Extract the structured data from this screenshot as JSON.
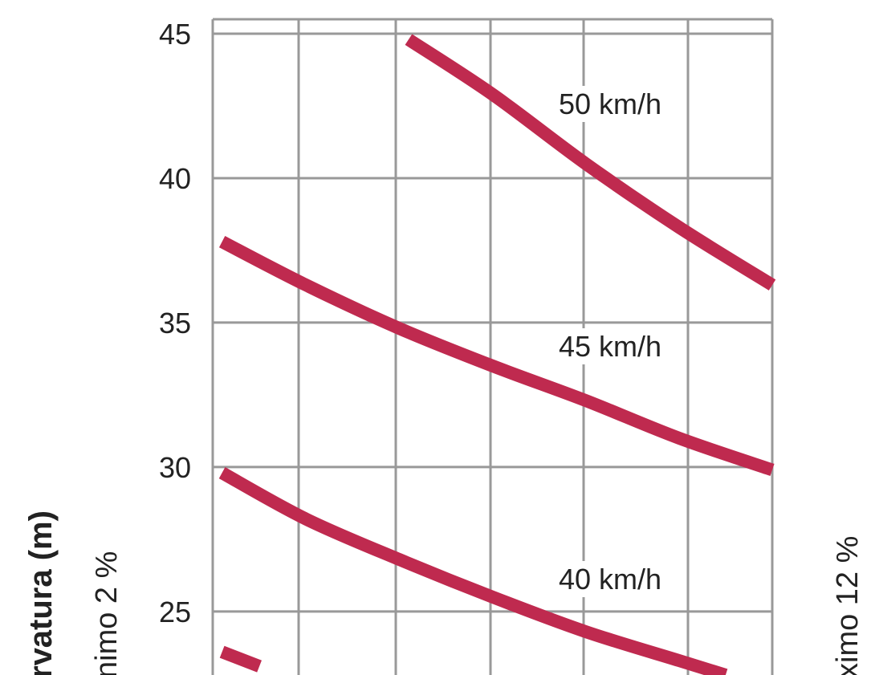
{
  "chart_data": {
    "type": "line",
    "title": "",
    "ylabel": "rvatura (m)",
    "left_side_label": "nimo 2 %",
    "right_side_label": "ximo 12 %",
    "ylim": [
      22.8,
      45.5
    ],
    "xlim": [
      0,
      6
    ],
    "y_ticks": [
      "45",
      "40",
      "35",
      "30",
      "25"
    ],
    "grid": true,
    "colors": {
      "curve": "#bf2a4f",
      "grid": "#999999",
      "text": "#222222"
    },
    "series": [
      {
        "name": "50 km/h",
        "x": [
          2.1,
          3.0,
          4.0,
          5.0,
          6.0
        ],
        "y": [
          44.8,
          42.9,
          40.5,
          38.3,
          36.3
        ]
      },
      {
        "name": "45 km/h",
        "x": [
          0.1,
          1.0,
          2.0,
          3.0,
          4.0,
          5.0,
          6.0
        ],
        "y": [
          37.8,
          36.3,
          34.8,
          33.5,
          32.3,
          31.0,
          29.9
        ]
      },
      {
        "name": "40 km/h",
        "x": [
          0.1,
          1.0,
          2.0,
          3.0,
          4.0,
          5.0,
          5.5
        ],
        "y": [
          29.8,
          28.2,
          26.8,
          25.5,
          24.3,
          23.3,
          22.8
        ]
      },
      {
        "name": "",
        "x": [
          0.1,
          0.5
        ],
        "y": [
          23.6,
          23.1
        ]
      }
    ]
  }
}
